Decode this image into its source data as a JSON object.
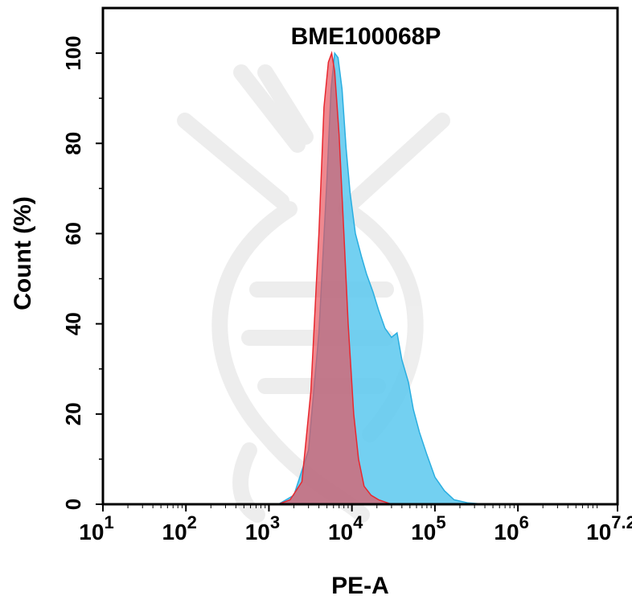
{
  "chart_data": {
    "type": "area",
    "title": "BME100068P",
    "xlabel": "PE-A",
    "ylabel": "Count  (%)",
    "x_scale": "log",
    "xlim": [
      10,
      15848932
    ],
    "ylim": [
      0,
      110
    ],
    "x_ticks": [
      {
        "value": 10,
        "base": "10",
        "exp": "1"
      },
      {
        "value": 100,
        "base": "10",
        "exp": "2"
      },
      {
        "value": 1000,
        "base": "10",
        "exp": "3"
      },
      {
        "value": 10000,
        "base": "10",
        "exp": "4"
      },
      {
        "value": 100000,
        "base": "10",
        "exp": "5"
      },
      {
        "value": 1000000,
        "base": "10",
        "exp": "6"
      },
      {
        "value": 15848932,
        "base": "10",
        "exp": "7.2"
      }
    ],
    "y_ticks": [
      0,
      20,
      40,
      60,
      80,
      100
    ],
    "grid": false,
    "legend": "none",
    "series": [
      {
        "color": "#5ac8ee",
        "stroke": "#2aaee0",
        "x": [
          1300,
          2000,
          3000,
          4000,
          5000,
          5600,
          6200,
          6800,
          7600,
          8500,
          9500,
          11000,
          13000,
          15000,
          18000,
          21000,
          25000,
          30000,
          35000,
          40000,
          48000,
          55000,
          65000,
          80000,
          100000,
          130000,
          170000,
          250000,
          400000
        ],
        "y": [
          0,
          2,
          12,
          38,
          72,
          92,
          100,
          99,
          92,
          79,
          69,
          60,
          55,
          51,
          47,
          43,
          39,
          37,
          38,
          32,
          27,
          21,
          16,
          11,
          6,
          3,
          1,
          0.3,
          0
        ]
      },
      {
        "color": "#e8505a",
        "stroke": "#e8282f",
        "x": [
          1300,
          1800,
          2500,
          3200,
          4000,
          4600,
          5200,
          5700,
          6200,
          7000,
          8000,
          9000,
          10500,
          12000,
          14000,
          17000,
          21000,
          30000
        ],
        "y": [
          0,
          1,
          5,
          25,
          60,
          88,
          98,
          100,
          96,
          82,
          60,
          40,
          20,
          10,
          4,
          2,
          1,
          0
        ]
      }
    ]
  }
}
